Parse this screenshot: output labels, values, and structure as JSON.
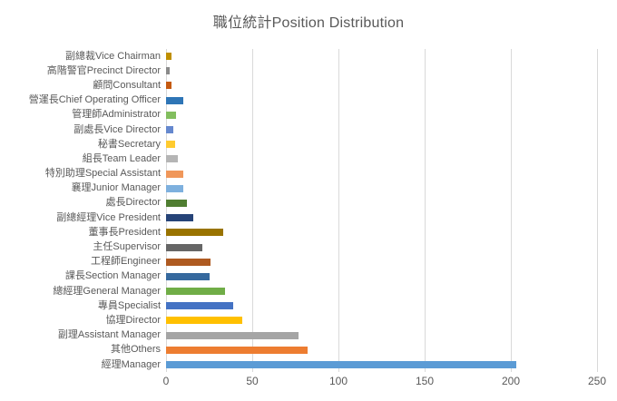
{
  "chart_data": {
    "type": "bar",
    "orientation": "horizontal",
    "title": "職位統計Position Distribution",
    "category_order": "top-to-bottom",
    "categories": [
      "副總裁Vice Chairman",
      "高階警官Precinct Director",
      "顧問Consultant",
      "營運長Chief Operating Officer",
      "管理師Administrator",
      "副處長Vice Director",
      "秘書Secretary",
      "組長Team Leader",
      "特別助理Special Assistant",
      "襄理Junior Manager",
      "處長Director",
      "副總經理Vice President",
      "董事長President",
      "主任Supervisor",
      "工程師Engineer",
      "課長Section Manager",
      "總經理General Manager",
      "專員Specialist",
      "協理Director",
      "副理Assistant Manager",
      "其他Others",
      "經理Manager"
    ],
    "values": [
      3,
      2,
      3,
      10,
      6,
      4,
      5,
      7,
      10,
      10,
      12,
      16,
      33,
      21,
      26,
      25,
      34,
      39,
      44,
      77,
      82,
      203
    ],
    "bar_colors": [
      "#BF8F00",
      "#8A8A8A",
      "#C55A11",
      "#2E75B6",
      "#82BE5E",
      "#6588CE",
      "#FFCB2F",
      "#B5B5B5",
      "#F0975A",
      "#7EB0DE",
      "#507E32",
      "#264478",
      "#997300",
      "#666666",
      "#AE5A21",
      "#36699E",
      "#70AD47",
      "#4472C4",
      "#FFC000",
      "#A5A5A5",
      "#ED7D31",
      "#5B9BD5"
    ],
    "xlabel": "",
    "ylabel": "",
    "xlim": [
      0,
      250
    ],
    "x_ticks": [
      0,
      50,
      100,
      150,
      200,
      250
    ],
    "grid": true,
    "legend": "none",
    "colors": {
      "title": "#595959",
      "category_label": "#595959",
      "tick_label": "#595959",
      "gridline": "#D9D9D9",
      "background": "#FFFFFF"
    }
  }
}
